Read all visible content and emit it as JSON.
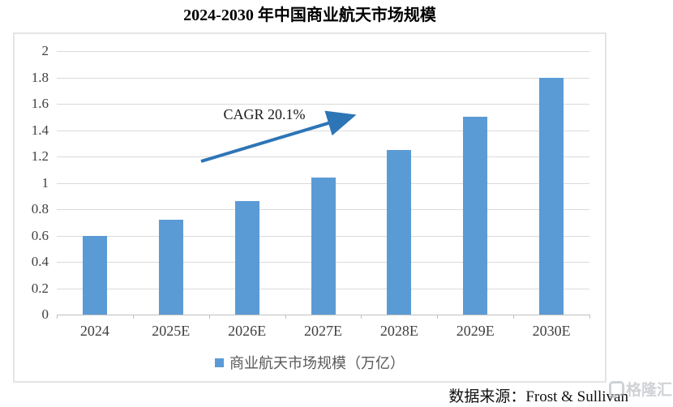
{
  "page": {
    "source_text": "数据来源：Frost & Sullivan",
    "watermark": "格隆汇"
  },
  "chart_data": {
    "type": "bar",
    "title": "2024-2030 年中国商业航天市场规模",
    "categories": [
      "2024",
      "2025E",
      "2026E",
      "2027E",
      "2028E",
      "2029E",
      "2030E"
    ],
    "values": [
      0.6,
      0.72,
      0.86,
      1.04,
      1.25,
      1.5,
      1.8
    ],
    "series_name": "商业航天市场规模（万亿）",
    "annotation": "CAGR 20.1%",
    "xlabel": "",
    "ylabel": "",
    "ylim": [
      0,
      2
    ],
    "yticks": [
      "0",
      "0.2",
      "0.4",
      "0.6",
      "0.8",
      "1",
      "1.2",
      "1.4",
      "1.6",
      "1.8",
      "2"
    ],
    "grid": true,
    "legend_position": "bottom",
    "bar_color": "#5B9BD5",
    "arrow_color": "#2E75B6"
  }
}
